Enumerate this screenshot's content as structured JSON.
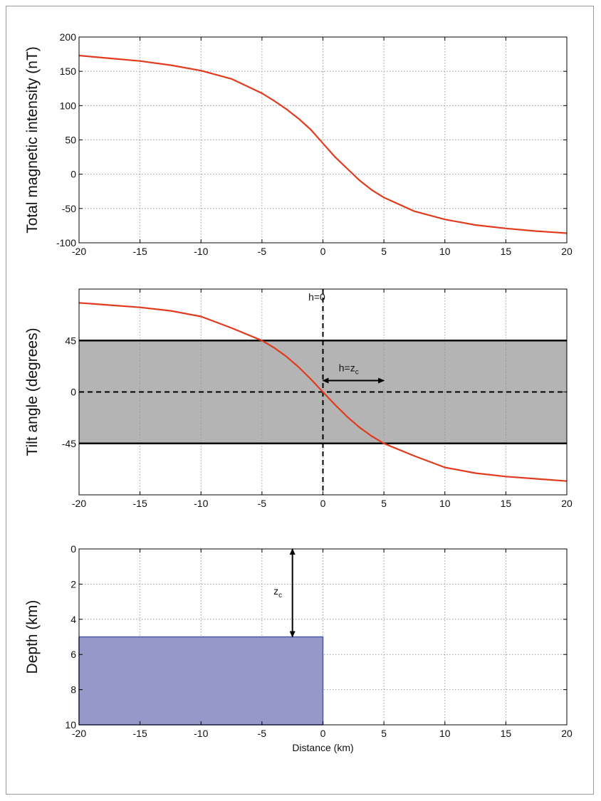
{
  "chart_data": [
    {
      "type": "line",
      "ylabel": "Total magnetic intensity (nT)",
      "xlabel": "",
      "xlim": [
        -20,
        20
      ],
      "ylim": [
        -100,
        200
      ],
      "xticks": [
        -20,
        -15,
        -10,
        -5,
        0,
        5,
        10,
        15,
        20
      ],
      "yticks": [
        -100,
        -50,
        0,
        50,
        100,
        150,
        200
      ],
      "xtick_labels": [
        "-20",
        "-15",
        "-10",
        "-5",
        "0",
        "5",
        "10",
        "15",
        "20"
      ],
      "ytick_labels": [
        "-100",
        "-50",
        "0",
        "50",
        "100",
        "150",
        "200"
      ],
      "grid": true,
      "line_color": "#e23a1e",
      "series": [
        {
          "x": [
            -20,
            -17.5,
            -15,
            -12.5,
            -10,
            -7.5,
            -5,
            -4,
            -3,
            -2,
            -1,
            0,
            1,
            2,
            3,
            4,
            5,
            7.5,
            10,
            12.5,
            15,
            17.5,
            20
          ],
          "y": [
            173,
            169,
            165,
            159,
            151,
            139,
            118,
            107,
            95,
            81,
            65,
            45,
            25,
            8,
            -9,
            -23,
            -34,
            -54,
            -66,
            -74,
            -79,
            -83,
            -86
          ]
        }
      ]
    },
    {
      "type": "line",
      "ylabel": "Tilt angle (degrees)",
      "xlabel": "",
      "xlim": [
        -20,
        20
      ],
      "ylim": [
        -90,
        90
      ],
      "xticks": [
        -20,
        -15,
        -10,
        -5,
        0,
        5,
        10,
        15,
        20
      ],
      "yticks": [
        -45,
        0,
        45
      ],
      "xtick_labels": [
        "-20",
        "-15",
        "-10",
        "-5",
        "0",
        "5",
        "10",
        "15",
        "20"
      ],
      "ytick_labels": [
        "-45",
        "0",
        "45"
      ],
      "grid": true,
      "band": {
        "ymin": -45,
        "ymax": 45,
        "color": "#b4b4b4"
      },
      "line_color": "#e23a1e",
      "series": [
        {
          "x": [
            -20,
            -17.5,
            -15,
            -12.5,
            -10,
            -7.5,
            -5,
            -4,
            -3,
            -2,
            -1,
            0,
            1,
            2,
            3,
            4,
            5,
            7.5,
            10,
            12.5,
            15,
            17.5,
            20
          ],
          "y": [
            78,
            76,
            74,
            71,
            66,
            56,
            45,
            38.7,
            31,
            21.8,
            11.3,
            0,
            -11.3,
            -21.8,
            -31,
            -38.7,
            -45,
            -56,
            -66,
            -71,
            -74,
            -76,
            -78
          ]
        }
      ],
      "annotations": [
        {
          "text": "h=0",
          "x": -0.5,
          "y": 80
        },
        {
          "text_main": "h=z",
          "text_sub": "c",
          "x": 1.3,
          "y": 18
        }
      ],
      "arrow": {
        "x_from": 0,
        "x_to": 5,
        "y": 10
      }
    },
    {
      "type": "area",
      "ylabel": "Depth (km)",
      "xlabel": "Distance (km)",
      "xlim": [
        -20,
        20
      ],
      "ylim": [
        0,
        10
      ],
      "y_inverted": true,
      "xticks": [
        -20,
        -15,
        -10,
        -5,
        0,
        5,
        10,
        15,
        20
      ],
      "yticks": [
        0,
        2,
        4,
        6,
        8,
        10
      ],
      "xtick_labels": [
        "-20",
        "-15",
        "-10",
        "-5",
        "0",
        "5",
        "10",
        "15",
        "20"
      ],
      "ytick_labels": [
        "0",
        "2",
        "4",
        "6",
        "8",
        "10"
      ],
      "grid": true,
      "block": {
        "x0": -20,
        "x1": 0,
        "y0": 5,
        "y1": 10,
        "color": "#9598c9",
        "edge": "#4a56a8"
      },
      "arrow": {
        "x": -2.5,
        "y_from": 0,
        "y_to": 5
      },
      "annotation": {
        "text_main": "z",
        "text_sub": "c",
        "x": -3.7,
        "y": 2.6
      }
    }
  ]
}
